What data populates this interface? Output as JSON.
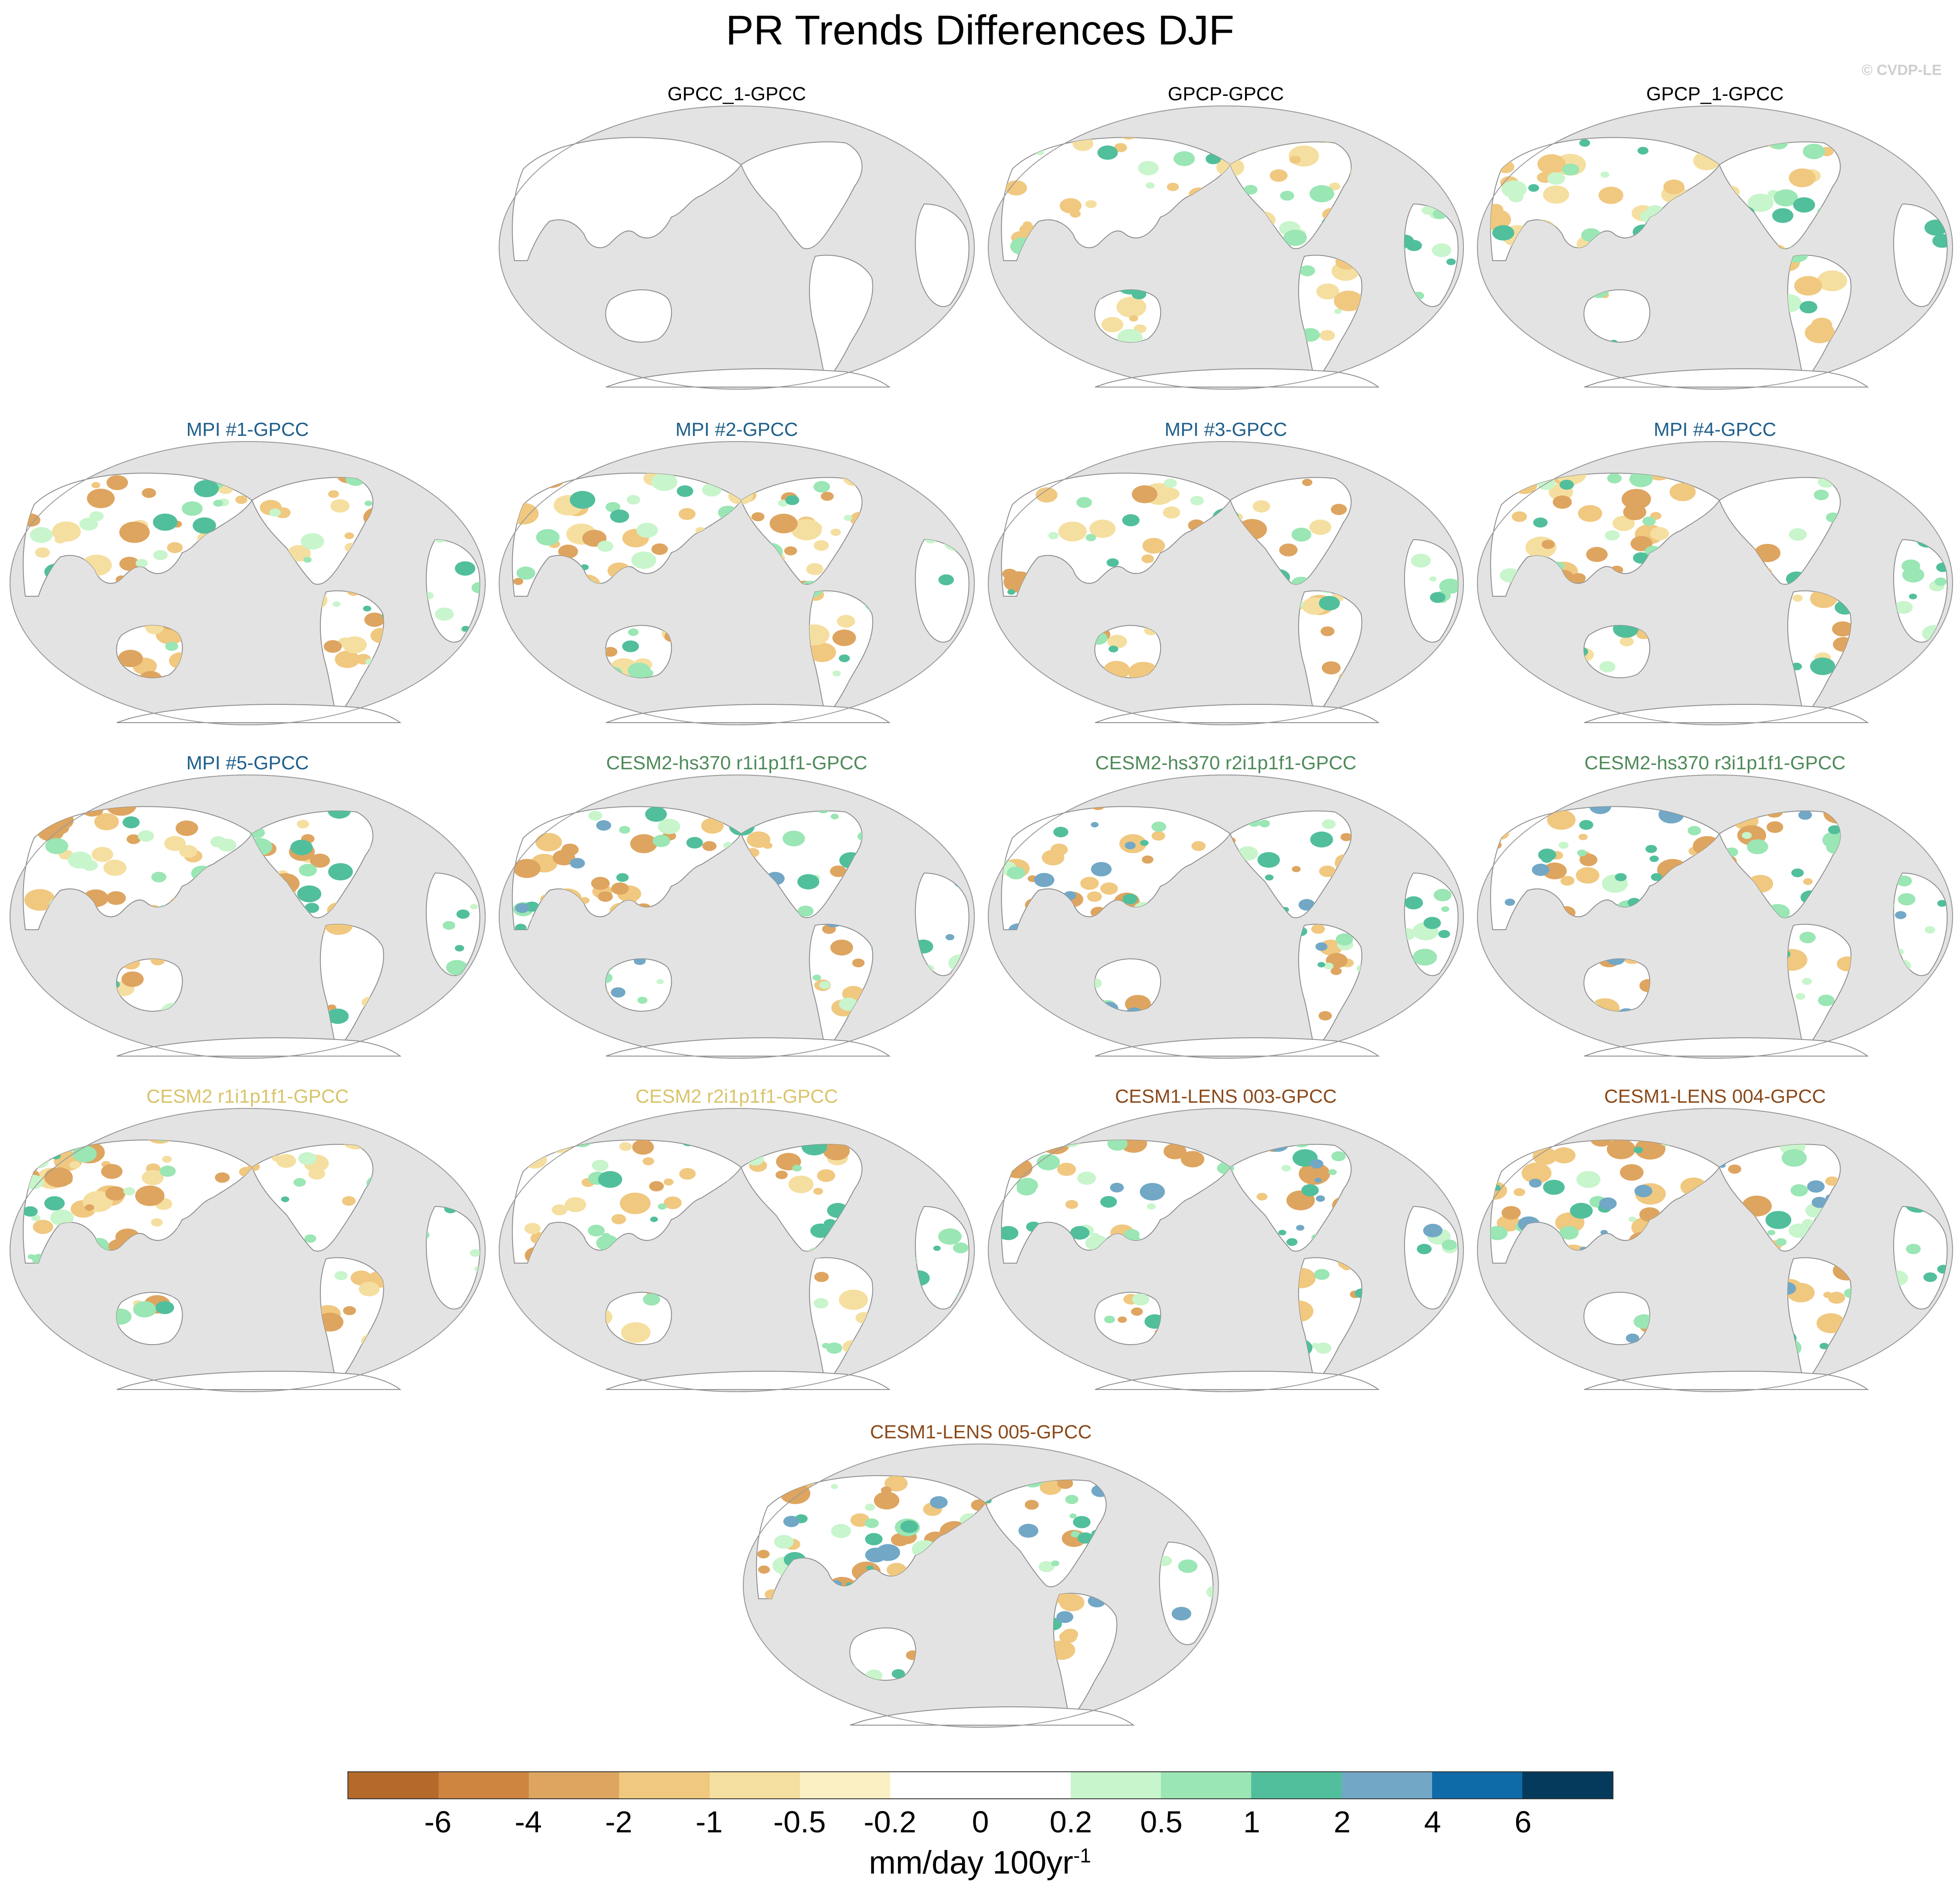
{
  "title": "PR Trends Differences DJF",
  "credit": "© CVDP-LE",
  "panels": [
    {
      "label": "GPCC_1-GPCC",
      "color": "#000000",
      "variant": "blank"
    },
    {
      "label": "GPCP-GPCC",
      "color": "#000000",
      "variant": "obs"
    },
    {
      "label": "GPCP_1-GPCC",
      "color": "#000000",
      "variant": "obs"
    },
    {
      "label": "MPI #1-GPCC",
      "color": "#1f5f8b",
      "variant": "dry"
    },
    {
      "label": "MPI #2-GPCC",
      "color": "#1f5f8b",
      "variant": "dry"
    },
    {
      "label": "MPI #3-GPCC",
      "color": "#1f5f8b",
      "variant": "dry"
    },
    {
      "label": "MPI #4-GPCC",
      "color": "#1f5f8b",
      "variant": "dry"
    },
    {
      "label": "MPI #5-GPCC",
      "color": "#1f5f8b",
      "variant": "dry"
    },
    {
      "label": "CESM2-hs370 r1i1p1f1-GPCC",
      "color": "#4f8a5a",
      "variant": "wet"
    },
    {
      "label": "CESM2-hs370 r2i1p1f1-GPCC",
      "color": "#4f8a5a",
      "variant": "wet"
    },
    {
      "label": "CESM2-hs370 r3i1p1f1-GPCC",
      "color": "#4f8a5a",
      "variant": "wet"
    },
    {
      "label": "CESM2 r1i1p1f1-GPCC",
      "color": "#d9c46a",
      "variant": "mixed"
    },
    {
      "label": "CESM2 r2i1p1f1-GPCC",
      "color": "#d9c46a",
      "variant": "mixed"
    },
    {
      "label": "CESM1-LENS 003-GPCC",
      "color": "#8a4a1a",
      "variant": "wet"
    },
    {
      "label": "CESM1-LENS 004-GPCC",
      "color": "#8a4a1a",
      "variant": "wet"
    },
    {
      "label": "CESM1-LENS 005-GPCC",
      "color": "#8a4a1a",
      "variant": "wet"
    }
  ],
  "colorbar": {
    "colors": [
      "#b5692a",
      "#cd8540",
      "#dea560",
      "#f0c880",
      "#f5dfa0",
      "#fbf0c4",
      "#ffffff",
      "#ffffff",
      "#c8f5cc",
      "#9ae6b4",
      "#52bf9c",
      "#72a8c6",
      "#0f6aa8",
      "#063a5c"
    ],
    "labels": [
      "-6",
      "-4",
      "-2",
      "-1",
      "-0.5",
      "-0.2",
      "0",
      "0.2",
      "0.5",
      "1",
      "2",
      "4",
      "6"
    ],
    "units": "mm/day 100yr",
    "units_exponent": "-1"
  }
}
